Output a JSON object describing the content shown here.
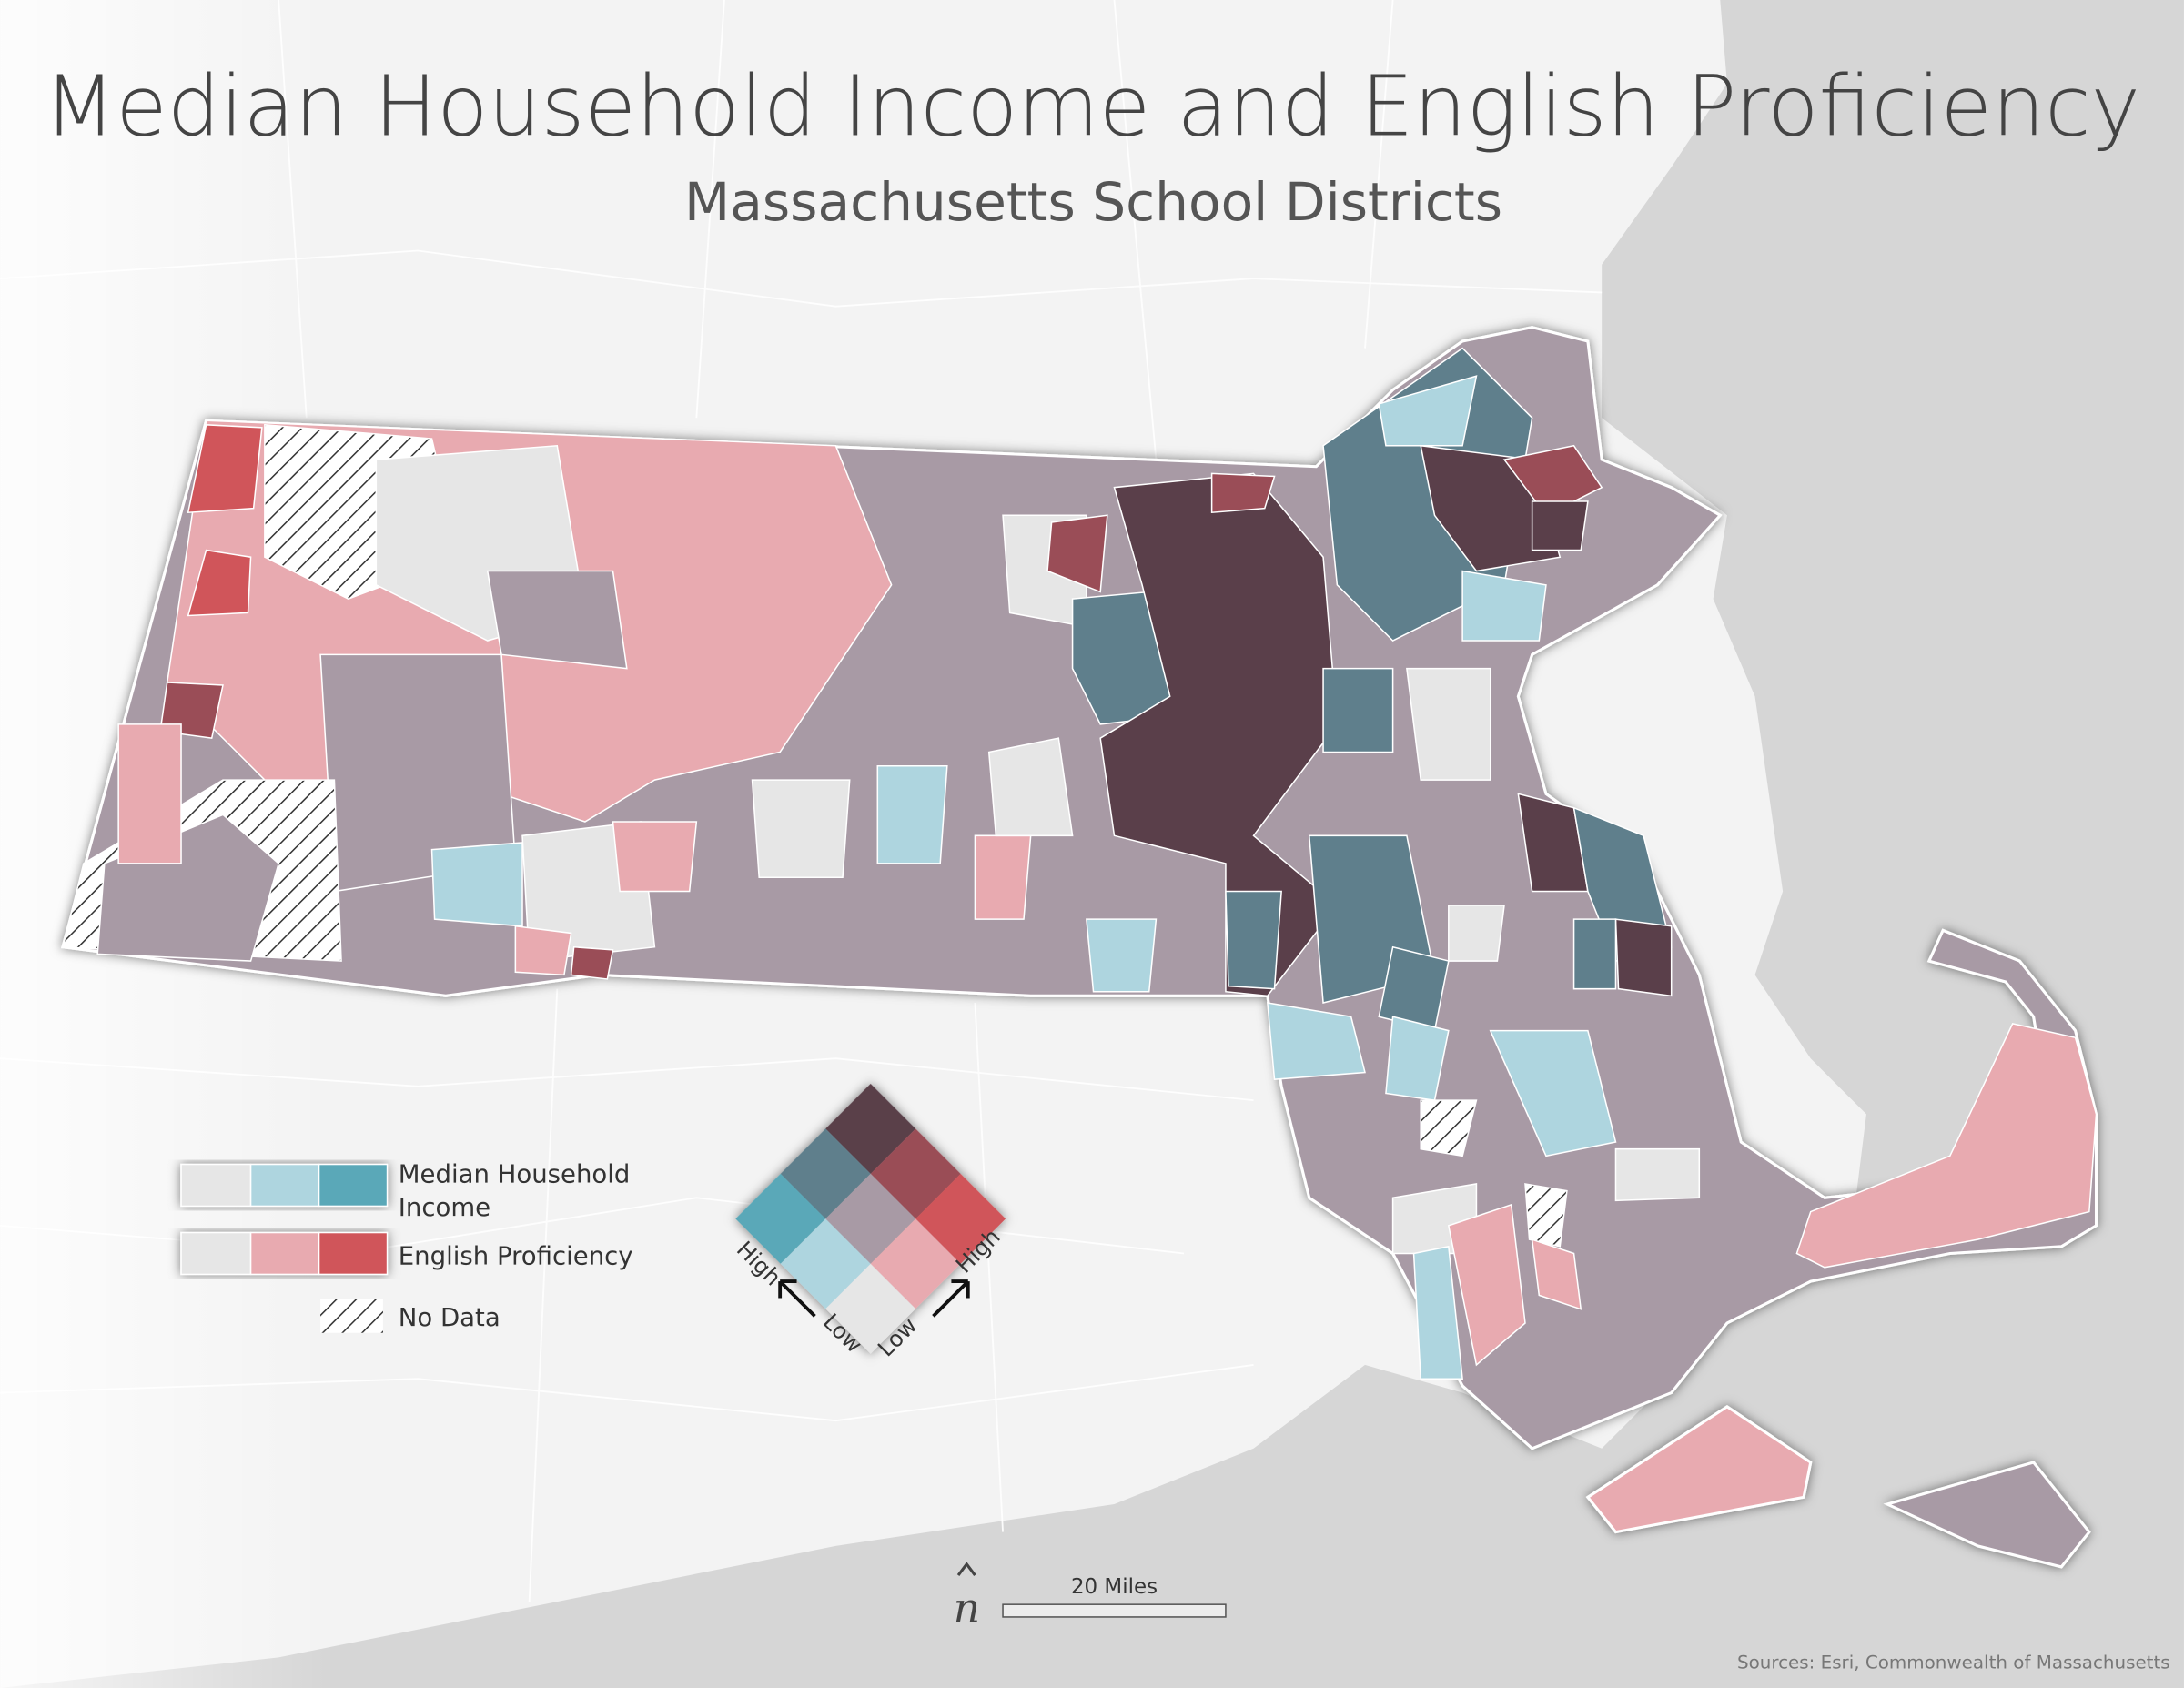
{
  "header": {
    "title": "Median Household Income and English Proficiency",
    "subtitle": "Massachusetts School Districts"
  },
  "legend": {
    "income_label": [
      "Median Household",
      "Income"
    ],
    "english_label": "English Proficiency",
    "no_data_label": "No Data"
  },
  "bivariate_legend": {
    "income_high": "High",
    "income_low": "Low",
    "english_low": "Low",
    "english_high": "High"
  },
  "scale_bar": "20 Miles",
  "north_arrow": "n",
  "source": "Sources: Esri, Commonwealth of Massachusetts"
}
